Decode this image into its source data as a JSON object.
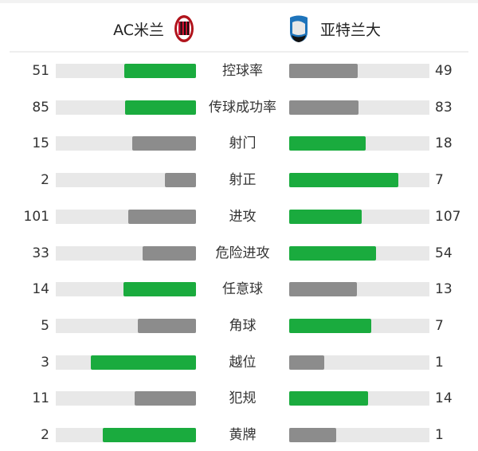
{
  "home_team": {
    "name": "AC米兰",
    "logo": "ac-milan-crest"
  },
  "away_team": {
    "name": "亚特兰大",
    "logo": "atalanta-crest"
  },
  "colors": {
    "leader": "#1aab3e",
    "trailer": "#8c8c8c",
    "track": "#e8e8e8"
  },
  "stats": [
    {
      "label": "控球率",
      "home": "51",
      "away": "49"
    },
    {
      "label": "传球成功率",
      "home": "85",
      "away": "83"
    },
    {
      "label": "射门",
      "home": "15",
      "away": "18"
    },
    {
      "label": "射正",
      "home": "2",
      "away": "7"
    },
    {
      "label": "进攻",
      "home": "101",
      "away": "107"
    },
    {
      "label": "危险进攻",
      "home": "33",
      "away": "54"
    },
    {
      "label": "任意球",
      "home": "14",
      "away": "13"
    },
    {
      "label": "角球",
      "home": "5",
      "away": "7"
    },
    {
      "label": "越位",
      "home": "3",
      "away": "1"
    },
    {
      "label": "犯规",
      "home": "11",
      "away": "14"
    },
    {
      "label": "黄牌",
      "home": "2",
      "away": "1"
    }
  ]
}
